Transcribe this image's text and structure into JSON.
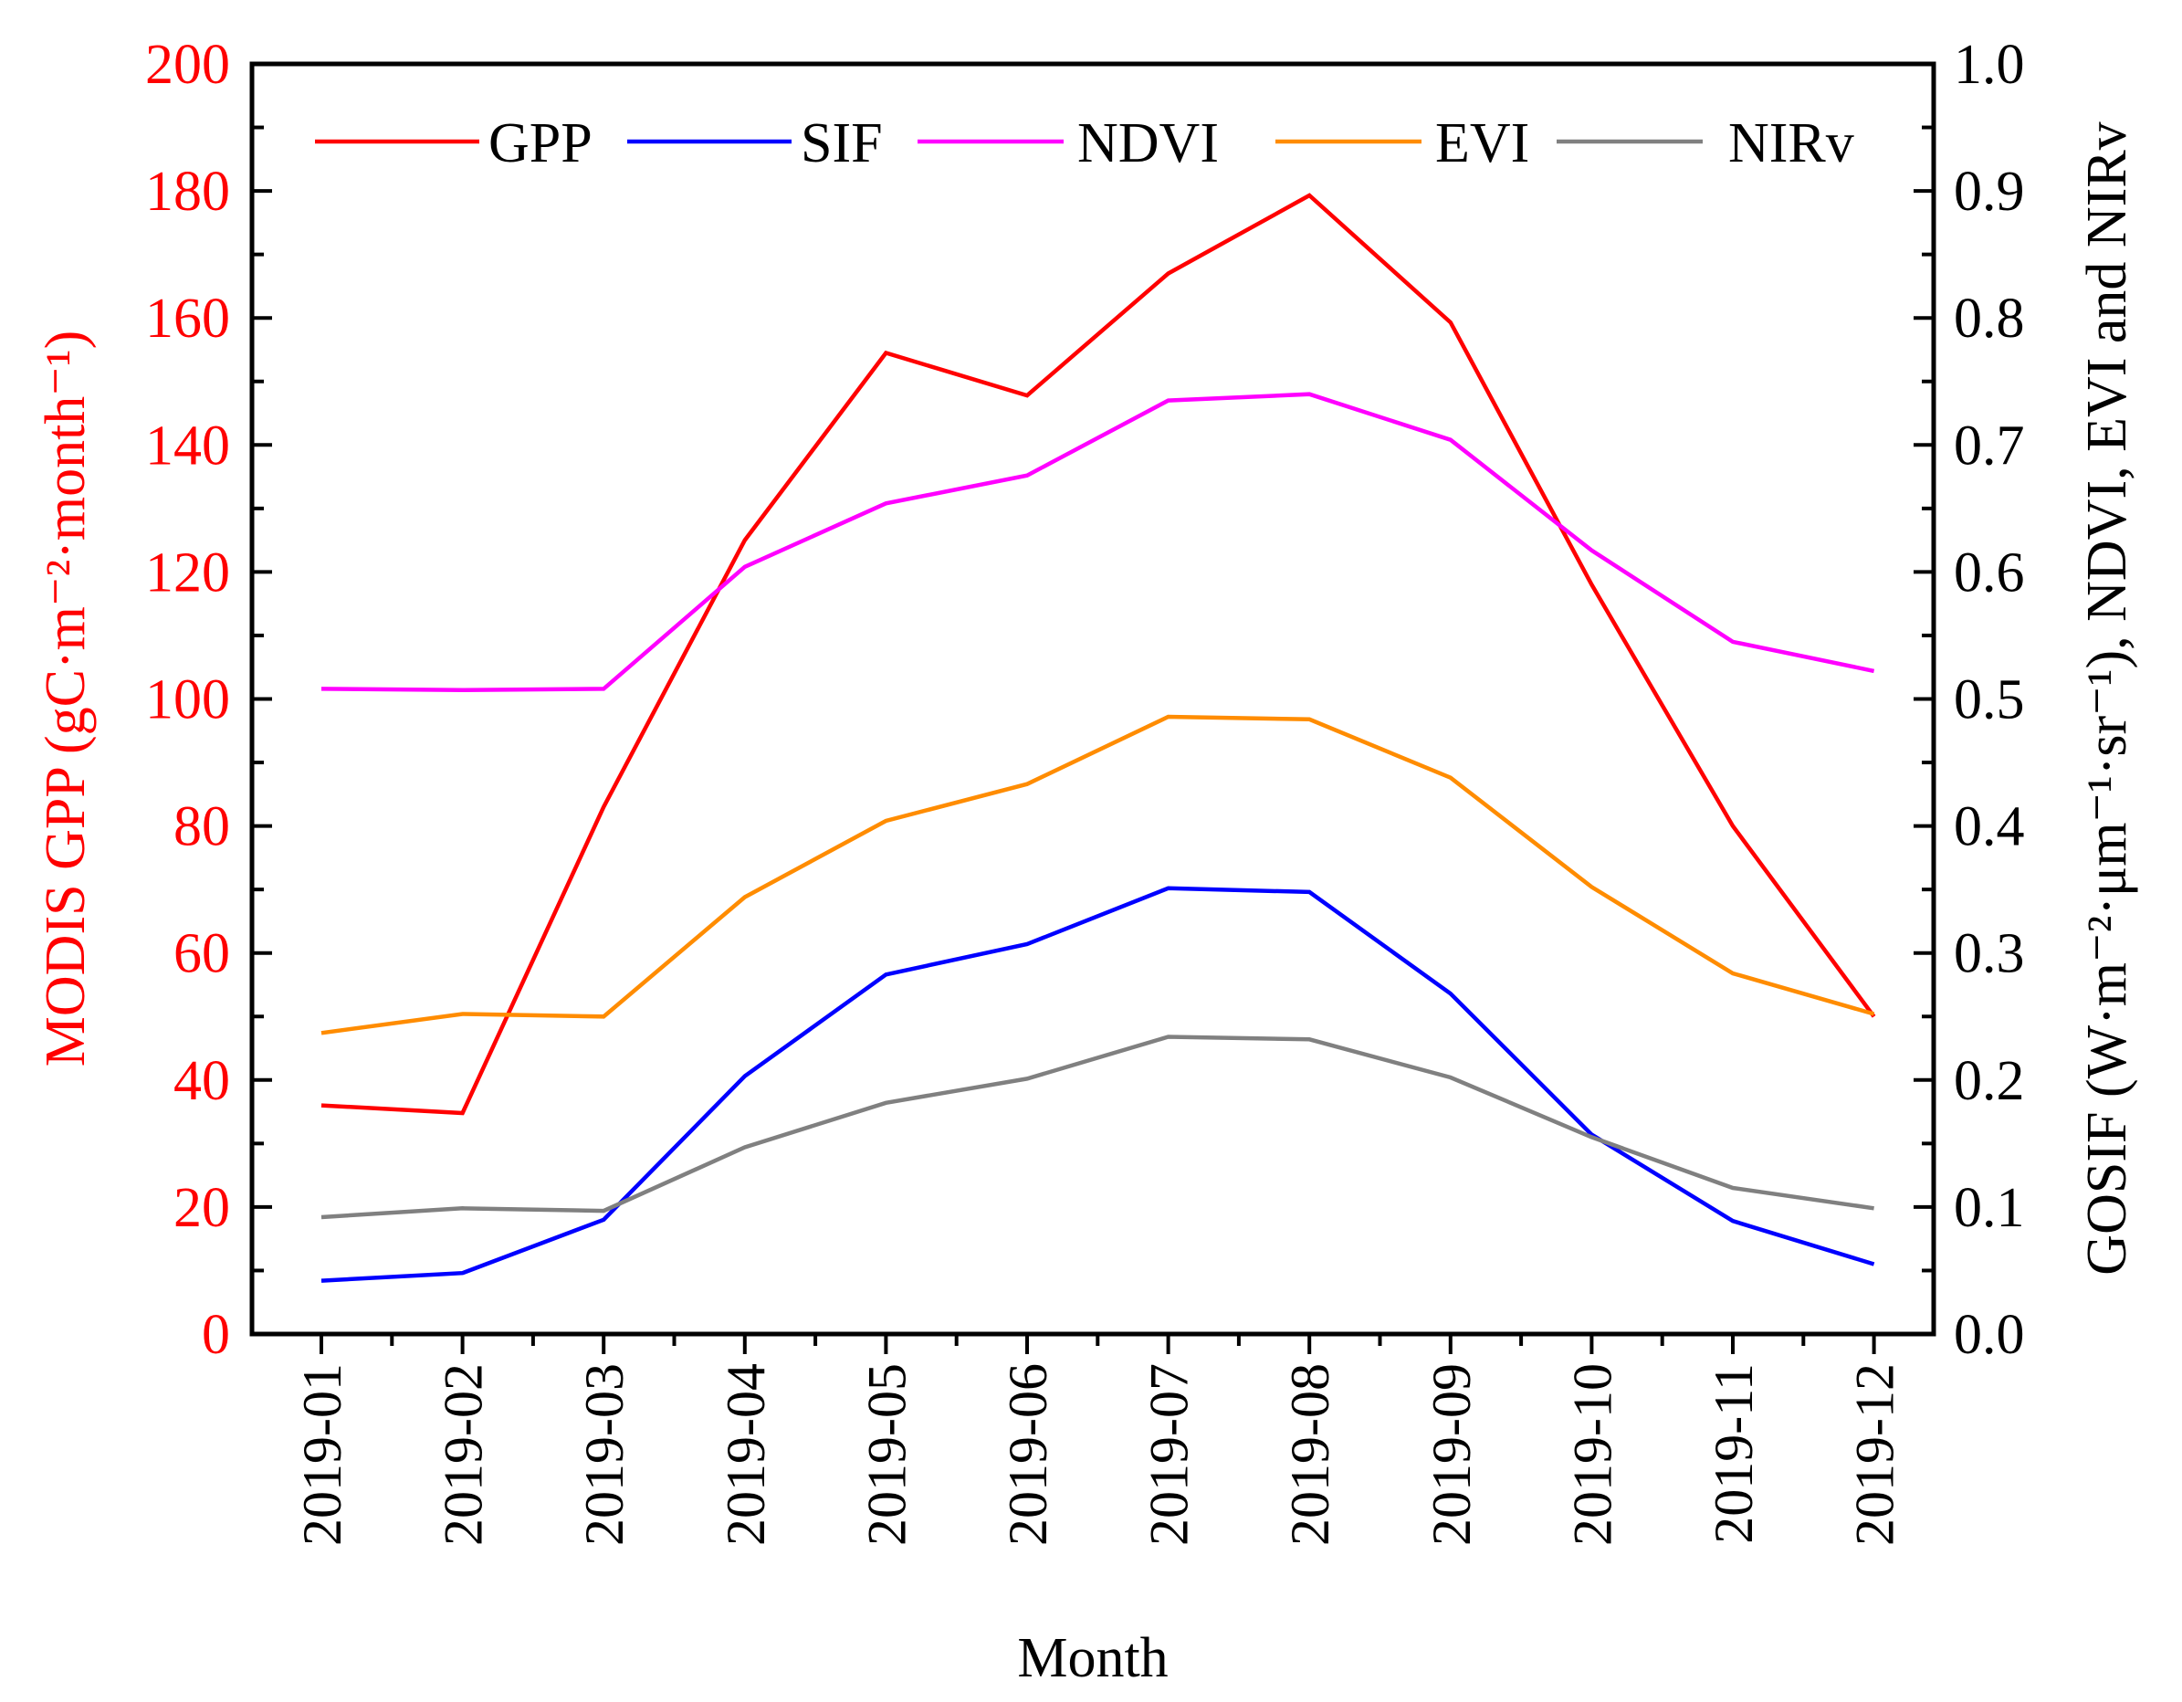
{
  "chart_data": {
    "type": "line",
    "xlabel": "Month",
    "ylabel_left": "MODIS GPP (gC·m⁻²·month⁻¹)",
    "ylabel_right": "GOSIF (W·m⁻²·μm⁻¹·sr⁻¹), NDVI, EVI and NIRv",
    "ylim_left": [
      0,
      200
    ],
    "ylim_right": [
      0.0,
      1.0
    ],
    "yticks_left": [
      "0",
      "20",
      "40",
      "60",
      "80",
      "100",
      "120",
      "140",
      "160",
      "180",
      "200"
    ],
    "yticks_right": [
      "0.0",
      "0.1",
      "0.2",
      "0.3",
      "0.4",
      "0.5",
      "0.6",
      "0.7",
      "0.8",
      "0.9",
      "1.0"
    ],
    "categories": [
      "2019-01",
      "2019-02",
      "2019-03",
      "2019-04",
      "2019-05",
      "2019-06",
      "2019-07",
      "2019-08",
      "2019-09",
      "2019-10",
      "2019-11",
      "2019-12"
    ],
    "legend_position": "top",
    "colors": {
      "left_axis": "#ff0000",
      "right_axis": "#000000"
    },
    "series": [
      {
        "name": "GPP",
        "axis": "left",
        "color": "#ff0000",
        "values": [
          36,
          34.8,
          83,
          125,
          154.5,
          147.8,
          167,
          179.3,
          159.3,
          118,
          80,
          50
        ]
      },
      {
        "name": "SIF",
        "axis": "right",
        "color": "#0000ff",
        "values": [
          0.042,
          0.048,
          0.09,
          0.203,
          0.283,
          0.307,
          0.351,
          0.348,
          0.268,
          0.157,
          0.089,
          0.055
        ]
      },
      {
        "name": "NDVI",
        "axis": "right",
        "color": "#ff00ff",
        "values": [
          0.508,
          0.507,
          0.508,
          0.604,
          0.654,
          0.676,
          0.735,
          0.74,
          0.704,
          0.617,
          0.545,
          0.522
        ]
      },
      {
        "name": "EVI",
        "axis": "right",
        "color": "#ff8c00",
        "values": [
          0.237,
          0.252,
          0.25,
          0.344,
          0.404,
          0.433,
          0.486,
          0.484,
          0.438,
          0.352,
          0.284,
          0.252
        ]
      },
      {
        "name": "NIRv",
        "axis": "right",
        "color": "#808080",
        "values": [
          0.092,
          0.099,
          0.097,
          0.147,
          0.182,
          0.201,
          0.234,
          0.232,
          0.202,
          0.155,
          0.115,
          0.099
        ]
      }
    ]
  }
}
